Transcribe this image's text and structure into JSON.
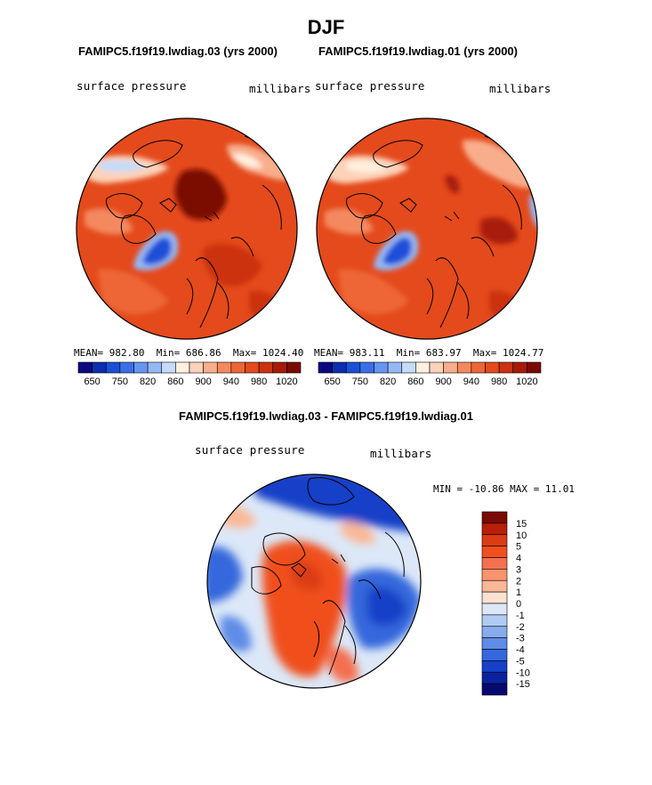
{
  "page": {
    "season_title": "DJF",
    "diff_title": "FAMIPC5.f19f19.lwdiag.03 - FAMIPC5.f19f19.lwdiag.01"
  },
  "panels": [
    {
      "title": "FAMIPC5.f19f19.lwdiag.03 (yrs 2000)",
      "variable": "surface pressure",
      "units": "millibars",
      "stats": {
        "mean_label": "MEAN=",
        "mean": "982.80",
        "min_label": "Min=",
        "min": "686.86",
        "max_label": "Max=",
        "max": "1024.40"
      }
    },
    {
      "title": "FAMIPC5.f19f19.lwdiag.01 (yrs 2000)",
      "variable": "surface pressure",
      "units": "millibars",
      "stats": {
        "mean_label": "MEAN=",
        "mean": "983.11",
        "min_label": "Min=",
        "min": "683.97",
        "max_label": "Max=",
        "max": "1024.77"
      }
    }
  ],
  "difference": {
    "variable": "surface pressure",
    "units": "millibars",
    "min_max_text": "MIN = -10.86  MAX =  11.01"
  },
  "chart_data": [
    {
      "type": "heatmap",
      "projection": "north-polar stereographic",
      "title": "FAMIPC5.f19f19.lwdiag.03 (yrs 2000)",
      "variable": "surface pressure",
      "units": "millibars",
      "mean": 982.8,
      "min": 686.86,
      "max": 1024.4,
      "colorbar": {
        "orientation": "horizontal",
        "labels": [
          "650",
          "750",
          "820",
          "860",
          "900",
          "940",
          "980",
          "1020"
        ],
        "colors": [
          "#0a0a80",
          "#0d2eb0",
          "#1a4fd8",
          "#3a6fe8",
          "#6694f0",
          "#95b8f5",
          "#c4dcf8",
          "#fff0e0",
          "#fcd2b8",
          "#f8ae8c",
          "#f4895e",
          "#ee6636",
          "#e44a1c",
          "#cc3210",
          "#a81a08",
          "#7a0a04"
        ]
      }
    },
    {
      "type": "heatmap",
      "projection": "north-polar stereographic",
      "title": "FAMIPC5.f19f19.lwdiag.01 (yrs 2000)",
      "variable": "surface pressure",
      "units": "millibars",
      "mean": 983.11,
      "min": 683.97,
      "max": 1024.77,
      "colorbar": {
        "orientation": "horizontal",
        "labels": [
          "650",
          "750",
          "820",
          "860",
          "900",
          "940",
          "980",
          "1020"
        ],
        "colors": [
          "#0a0a80",
          "#0d2eb0",
          "#1a4fd8",
          "#3a6fe8",
          "#6694f0",
          "#95b8f5",
          "#c4dcf8",
          "#fff0e0",
          "#fcd2b8",
          "#f8ae8c",
          "#f4895e",
          "#ee6636",
          "#e44a1c",
          "#cc3210",
          "#a81a08",
          "#7a0a04"
        ]
      }
    },
    {
      "type": "heatmap",
      "projection": "north-polar stereographic",
      "title": "FAMIPC5.f19f19.lwdiag.03 - FAMIPC5.f19f19.lwdiag.01",
      "variable": "surface pressure",
      "units": "millibars",
      "min": -10.86,
      "max": 11.01,
      "colorbar": {
        "orientation": "vertical",
        "labels": [
          "15",
          "10",
          "5",
          "4",
          "3",
          "2",
          "1",
          "0",
          "-1",
          "-2",
          "-3",
          "-4",
          "-5",
          "-10",
          "-15"
        ],
        "colors": [
          "#7a0a04",
          "#b81e08",
          "#dc3c14",
          "#f0501e",
          "#f47050",
          "#f8946e",
          "#fab896",
          "#fde2d0",
          "#dce8f8",
          "#b0ccf4",
          "#86acee",
          "#5e8ce6",
          "#3468dc",
          "#1640c8",
          "#0a22a0",
          "#060a70"
        ]
      }
    }
  ]
}
